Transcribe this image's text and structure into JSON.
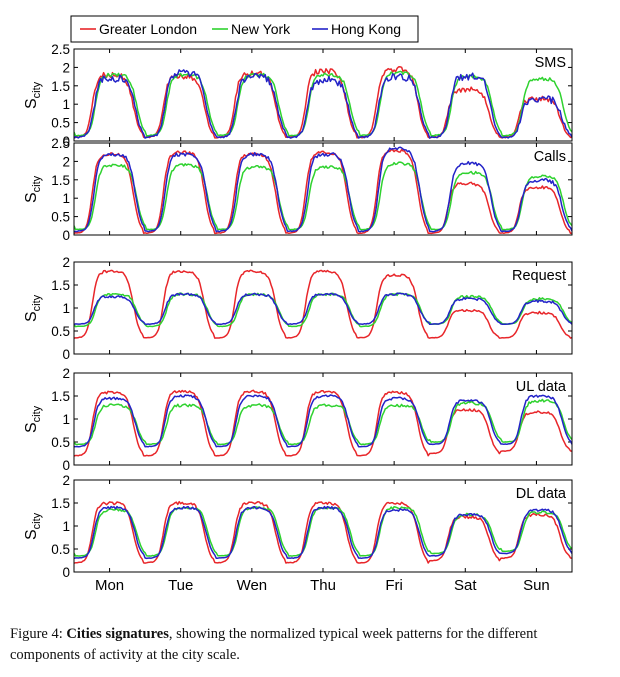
{
  "legend": {
    "entries": [
      {
        "name": "Greater London",
        "color": "#e8262a"
      },
      {
        "name": "New York",
        "color": "#2fd22f"
      },
      {
        "name": "Hong Kong",
        "color": "#2323c8"
      }
    ]
  },
  "days": [
    "Mon",
    "Tue",
    "Wen",
    "Thu",
    "Fri",
    "Sat",
    "Sun"
  ],
  "ylabel_main": "S",
  "ylabel_sub": "city",
  "caption": {
    "prefix": "Figure 4:",
    "bold": "Cities signatures",
    "rest": ", showing the normalized typical week patterns for the different components of activity at the city scale."
  },
  "chart_data": [
    {
      "type": "line",
      "title": "SMS",
      "xlabel": "",
      "ylabel": "S_city",
      "ylim": [
        0,
        2.5
      ],
      "yticks": [
        0,
        0.5,
        1,
        1.5,
        2,
        2.5
      ],
      "categories": [
        "Mon",
        "Tue",
        "Wen",
        "Thu",
        "Fri",
        "Sat",
        "Sun"
      ],
      "series": [
        {
          "name": "Greater London",
          "night_min": [
            0.1,
            0.1,
            0.1,
            0.1,
            0.1,
            0.1,
            0.1
          ],
          "day_max": [
            1.8,
            1.75,
            1.85,
            1.9,
            1.95,
            1.4,
            1.15
          ],
          "noise": 0.12
        },
        {
          "name": "New York",
          "night_min": [
            0.15,
            0.15,
            0.15,
            0.15,
            0.15,
            0.15,
            0.15
          ],
          "day_max": [
            1.8,
            1.8,
            1.8,
            1.8,
            1.85,
            1.75,
            1.7
          ],
          "noise": 0.08
        },
        {
          "name": "Hong Kong",
          "night_min": [
            0.1,
            0.1,
            0.1,
            0.1,
            0.1,
            0.1,
            0.1
          ],
          "day_max": [
            1.7,
            1.85,
            1.75,
            1.65,
            1.75,
            1.75,
            1.15
          ],
          "noise": 0.16
        }
      ]
    },
    {
      "type": "line",
      "title": "Calls",
      "xlabel": "",
      "ylabel": "S_city",
      "ylim": [
        0,
        2.5
      ],
      "yticks": [
        0,
        0.5,
        1,
        1.5,
        2,
        2.5
      ],
      "categories": [
        "Mon",
        "Tue",
        "Wen",
        "Thu",
        "Fri",
        "Sat",
        "Sun"
      ],
      "series": [
        {
          "name": "Greater London",
          "night_min": [
            0.05,
            0.05,
            0.05,
            0.05,
            0.05,
            0.05,
            0.05
          ],
          "day_max": [
            2.2,
            2.25,
            2.2,
            2.25,
            2.3,
            1.4,
            1.3
          ],
          "noise": 0.06
        },
        {
          "name": "New York",
          "night_min": [
            0.15,
            0.15,
            0.15,
            0.15,
            0.15,
            0.15,
            0.15
          ],
          "day_max": [
            1.9,
            1.9,
            1.85,
            1.85,
            1.95,
            1.7,
            1.6
          ],
          "noise": 0.06
        },
        {
          "name": "Hong Kong",
          "night_min": [
            0.1,
            0.1,
            0.1,
            0.1,
            0.1,
            0.1,
            0.1
          ],
          "day_max": [
            2.2,
            2.2,
            2.2,
            2.2,
            2.35,
            1.95,
            1.5
          ],
          "noise": 0.08
        }
      ]
    },
    {
      "type": "line",
      "title": "Request",
      "xlabel": "",
      "ylabel": "S_city",
      "ylim": [
        0,
        2
      ],
      "yticks": [
        0,
        0.5,
        1,
        1.5,
        2
      ],
      "categories": [
        "Mon",
        "Tue",
        "Wen",
        "Thu",
        "Fri",
        "Sat",
        "Sun"
      ],
      "series": [
        {
          "name": "Greater London",
          "night_min": [
            0.35,
            0.35,
            0.35,
            0.35,
            0.35,
            0.35,
            0.35
          ],
          "day_max": [
            1.8,
            1.8,
            1.8,
            1.8,
            1.72,
            0.95,
            0.9
          ],
          "noise": 0.04
        },
        {
          "name": "New York",
          "night_min": [
            0.6,
            0.6,
            0.6,
            0.6,
            0.6,
            0.65,
            0.65
          ],
          "day_max": [
            1.3,
            1.3,
            1.3,
            1.3,
            1.3,
            1.25,
            1.2
          ],
          "noise": 0.04
        },
        {
          "name": "Hong Kong",
          "night_min": [
            0.65,
            0.65,
            0.65,
            0.65,
            0.65,
            0.65,
            0.65
          ],
          "day_max": [
            1.25,
            1.3,
            1.3,
            1.3,
            1.3,
            1.2,
            1.15
          ],
          "noise": 0.04
        }
      ]
    },
    {
      "type": "line",
      "title": "UL data",
      "xlabel": "",
      "ylabel": "S_city",
      "ylim": [
        0,
        2
      ],
      "yticks": [
        0,
        0.5,
        1,
        1.5,
        2
      ],
      "categories": [
        "Mon",
        "Tue",
        "Wen",
        "Thu",
        "Fri",
        "Sat",
        "Sun"
      ],
      "series": [
        {
          "name": "Greater London",
          "night_min": [
            0.2,
            0.2,
            0.2,
            0.2,
            0.2,
            0.25,
            0.3
          ],
          "day_max": [
            1.58,
            1.6,
            1.6,
            1.6,
            1.58,
            1.2,
            1.15
          ],
          "noise": 0.04
        },
        {
          "name": "New York",
          "night_min": [
            0.45,
            0.45,
            0.45,
            0.45,
            0.45,
            0.5,
            0.5
          ],
          "day_max": [
            1.3,
            1.3,
            1.3,
            1.3,
            1.3,
            1.35,
            1.4
          ],
          "noise": 0.05
        },
        {
          "name": "Hong Kong",
          "night_min": [
            0.4,
            0.4,
            0.4,
            0.4,
            0.4,
            0.45,
            0.45
          ],
          "day_max": [
            1.45,
            1.5,
            1.5,
            1.5,
            1.45,
            1.4,
            1.5
          ],
          "noise": 0.04
        }
      ]
    },
    {
      "type": "line",
      "title": "DL data",
      "xlabel": "",
      "ylabel": "S_city",
      "ylim": [
        0,
        2
      ],
      "yticks": [
        0,
        0.5,
        1,
        1.5,
        2
      ],
      "categories": [
        "Mon",
        "Tue",
        "Wen",
        "Thu",
        "Fri",
        "Sat",
        "Sun"
      ],
      "series": [
        {
          "name": "Greater London",
          "night_min": [
            0.2,
            0.2,
            0.2,
            0.2,
            0.2,
            0.25,
            0.3
          ],
          "day_max": [
            1.5,
            1.5,
            1.5,
            1.5,
            1.5,
            1.2,
            1.25
          ],
          "noise": 0.05
        },
        {
          "name": "New York",
          "night_min": [
            0.35,
            0.35,
            0.35,
            0.35,
            0.35,
            0.4,
            0.45
          ],
          "day_max": [
            1.35,
            1.4,
            1.4,
            1.4,
            1.4,
            1.25,
            1.3
          ],
          "noise": 0.04
        },
        {
          "name": "Hong Kong",
          "night_min": [
            0.3,
            0.3,
            0.3,
            0.3,
            0.3,
            0.35,
            0.4
          ],
          "day_max": [
            1.4,
            1.4,
            1.4,
            1.4,
            1.35,
            1.25,
            1.35
          ],
          "noise": 0.04
        }
      ]
    }
  ]
}
